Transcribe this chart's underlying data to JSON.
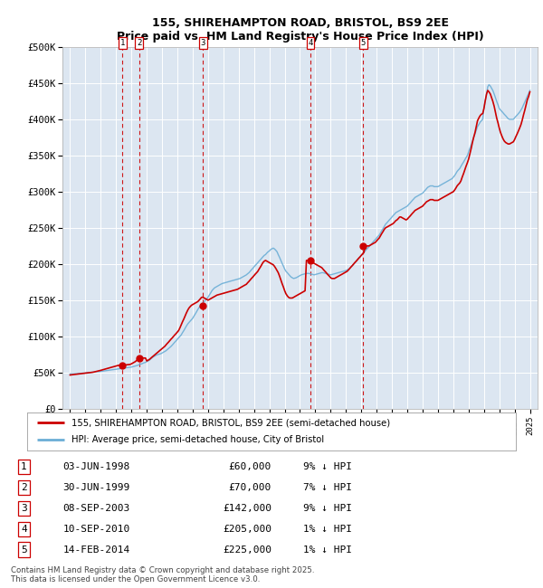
{
  "title": "155, SHIREHAMPTON ROAD, BRISTOL, BS9 2EE",
  "subtitle": "Price paid vs. HM Land Registry's House Price Index (HPI)",
  "legend_line1": "155, SHIREHAMPTON ROAD, BRISTOL, BS9 2EE (semi-detached house)",
  "legend_line2": "HPI: Average price, semi-detached house, City of Bristol",
  "footnote": "Contains HM Land Registry data © Crown copyright and database right 2025.\nThis data is licensed under the Open Government Licence v3.0.",
  "ylim": [
    0,
    500000
  ],
  "yticks": [
    0,
    50000,
    100000,
    150000,
    200000,
    250000,
    300000,
    350000,
    400000,
    450000,
    500000
  ],
  "ytick_labels": [
    "£0",
    "£50K",
    "£100K",
    "£150K",
    "£200K",
    "£250K",
    "£300K",
    "£350K",
    "£400K",
    "£450K",
    "£500K"
  ],
  "xlim_start": 1994.5,
  "xlim_end": 2025.5,
  "plot_bg_color": "#dce6f1",
  "sales": [
    {
      "num": 1,
      "year": 1998.42,
      "price": 60000,
      "date": "03-JUN-1998",
      "pct": "9%",
      "dir": "↓"
    },
    {
      "num": 2,
      "year": 1999.5,
      "price": 70000,
      "date": "30-JUN-1999",
      "pct": "7%",
      "dir": "↓"
    },
    {
      "num": 3,
      "year": 2003.68,
      "price": 142000,
      "date": "08-SEP-2003",
      "pct": "9%",
      "dir": "↓"
    },
    {
      "num": 4,
      "year": 2010.69,
      "price": 205000,
      "date": "10-SEP-2010",
      "pct": "1%",
      "dir": "↓"
    },
    {
      "num": 5,
      "year": 2014.12,
      "price": 225000,
      "date": "14-FEB-2014",
      "pct": "1%",
      "dir": "↓"
    }
  ],
  "hpi_x": [
    1995.0,
    1995.08,
    1995.17,
    1995.25,
    1995.33,
    1995.42,
    1995.5,
    1995.58,
    1995.67,
    1995.75,
    1995.83,
    1995.92,
    1996.0,
    1996.08,
    1996.17,
    1996.25,
    1996.33,
    1996.42,
    1996.5,
    1996.58,
    1996.67,
    1996.75,
    1996.83,
    1996.92,
    1997.0,
    1997.08,
    1997.17,
    1997.25,
    1997.33,
    1997.42,
    1997.5,
    1997.58,
    1997.67,
    1997.75,
    1997.83,
    1997.92,
    1998.0,
    1998.08,
    1998.17,
    1998.25,
    1998.33,
    1998.42,
    1998.5,
    1998.58,
    1998.67,
    1998.75,
    1998.83,
    1998.92,
    1999.0,
    1999.08,
    1999.17,
    1999.25,
    1999.33,
    1999.42,
    1999.5,
    1999.58,
    1999.67,
    1999.75,
    1999.83,
    1999.92,
    2000.0,
    2000.08,
    2000.17,
    2000.25,
    2000.33,
    2000.42,
    2000.5,
    2000.58,
    2000.67,
    2000.75,
    2000.83,
    2000.92,
    2001.0,
    2001.08,
    2001.17,
    2001.25,
    2001.33,
    2001.42,
    2001.5,
    2001.58,
    2001.67,
    2001.75,
    2001.83,
    2001.92,
    2002.0,
    2002.08,
    2002.17,
    2002.25,
    2002.33,
    2002.42,
    2002.5,
    2002.58,
    2002.67,
    2002.75,
    2002.83,
    2002.92,
    2003.0,
    2003.08,
    2003.17,
    2003.25,
    2003.33,
    2003.42,
    2003.5,
    2003.58,
    2003.67,
    2003.75,
    2003.83,
    2003.92,
    2004.0,
    2004.08,
    2004.17,
    2004.25,
    2004.33,
    2004.42,
    2004.5,
    2004.58,
    2004.67,
    2004.75,
    2004.83,
    2004.92,
    2005.0,
    2005.08,
    2005.17,
    2005.25,
    2005.33,
    2005.42,
    2005.5,
    2005.58,
    2005.67,
    2005.75,
    2005.83,
    2005.92,
    2006.0,
    2006.08,
    2006.17,
    2006.25,
    2006.33,
    2006.42,
    2006.5,
    2006.58,
    2006.67,
    2006.75,
    2006.83,
    2006.92,
    2007.0,
    2007.08,
    2007.17,
    2007.25,
    2007.33,
    2007.42,
    2007.5,
    2007.58,
    2007.67,
    2007.75,
    2007.83,
    2007.92,
    2008.0,
    2008.08,
    2008.17,
    2008.25,
    2008.33,
    2008.42,
    2008.5,
    2008.58,
    2008.67,
    2008.75,
    2008.83,
    2008.92,
    2009.0,
    2009.08,
    2009.17,
    2009.25,
    2009.33,
    2009.42,
    2009.5,
    2009.58,
    2009.67,
    2009.75,
    2009.83,
    2009.92,
    2010.0,
    2010.08,
    2010.17,
    2010.25,
    2010.33,
    2010.42,
    2010.5,
    2010.58,
    2010.67,
    2010.75,
    2010.83,
    2010.92,
    2011.0,
    2011.08,
    2011.17,
    2011.25,
    2011.33,
    2011.42,
    2011.5,
    2011.58,
    2011.67,
    2011.75,
    2011.83,
    2011.92,
    2012.0,
    2012.08,
    2012.17,
    2012.25,
    2012.33,
    2012.42,
    2012.5,
    2012.58,
    2012.67,
    2012.75,
    2012.83,
    2012.92,
    2013.0,
    2013.08,
    2013.17,
    2013.25,
    2013.33,
    2013.42,
    2013.5,
    2013.58,
    2013.67,
    2013.75,
    2013.83,
    2013.92,
    2014.0,
    2014.08,
    2014.17,
    2014.25,
    2014.33,
    2014.42,
    2014.5,
    2014.58,
    2014.67,
    2014.75,
    2014.83,
    2014.92,
    2015.0,
    2015.08,
    2015.17,
    2015.25,
    2015.33,
    2015.42,
    2015.5,
    2015.58,
    2015.67,
    2015.75,
    2015.83,
    2015.92,
    2016.0,
    2016.08,
    2016.17,
    2016.25,
    2016.33,
    2016.42,
    2016.5,
    2016.58,
    2016.67,
    2016.75,
    2016.83,
    2016.92,
    2017.0,
    2017.08,
    2017.17,
    2017.25,
    2017.33,
    2017.42,
    2017.5,
    2017.58,
    2017.67,
    2017.75,
    2017.83,
    2017.92,
    2018.0,
    2018.08,
    2018.17,
    2018.25,
    2018.33,
    2018.42,
    2018.5,
    2018.58,
    2018.67,
    2018.75,
    2018.83,
    2018.92,
    2019.0,
    2019.08,
    2019.17,
    2019.25,
    2019.33,
    2019.42,
    2019.5,
    2019.58,
    2019.67,
    2019.75,
    2019.83,
    2019.92,
    2020.0,
    2020.08,
    2020.17,
    2020.25,
    2020.33,
    2020.42,
    2020.5,
    2020.58,
    2020.67,
    2020.75,
    2020.83,
    2020.92,
    2021.0,
    2021.08,
    2021.17,
    2021.25,
    2021.33,
    2021.42,
    2021.5,
    2021.58,
    2021.67,
    2021.75,
    2021.83,
    2021.92,
    2022.0,
    2022.08,
    2022.17,
    2022.25,
    2022.33,
    2022.42,
    2022.5,
    2022.58,
    2022.67,
    2022.75,
    2022.83,
    2022.92,
    2023.0,
    2023.08,
    2023.17,
    2023.25,
    2023.33,
    2023.42,
    2023.5,
    2023.58,
    2023.67,
    2023.75,
    2023.83,
    2023.92,
    2024.0,
    2024.08,
    2024.17,
    2024.25,
    2024.33,
    2024.42,
    2024.5,
    2024.58,
    2024.67,
    2024.75,
    2024.83,
    2024.92,
    2025.0
  ],
  "hpi_y": [
    48000,
    48200,
    48100,
    48300,
    48500,
    48400,
    48600,
    48800,
    48700,
    49000,
    49200,
    49100,
    49500,
    49800,
    50000,
    50200,
    50100,
    50400,
    50600,
    50800,
    51000,
    51200,
    51100,
    51300,
    51500,
    51800,
    52000,
    52300,
    52500,
    52800,
    53000,
    53300,
    53500,
    53800,
    54000,
    54200,
    54500,
    54800,
    55000,
    55300,
    55500,
    55800,
    56000,
    56300,
    56500,
    56800,
    57000,
    57300,
    57500,
    58000,
    58500,
    59000,
    59500,
    60000,
    60800,
    61500,
    62000,
    62800,
    63500,
    64000,
    65000,
    66000,
    67000,
    68500,
    70000,
    71500,
    72500,
    73500,
    74500,
    75000,
    75500,
    76000,
    77000,
    78000,
    79000,
    80000,
    81500,
    83000,
    84500,
    86000,
    88000,
    90000,
    92000,
    94000,
    96000,
    98000,
    100000,
    102000,
    105000,
    108000,
    111000,
    114000,
    117000,
    119000,
    121000,
    123000,
    125000,
    128000,
    131000,
    134000,
    137000,
    140000,
    142000,
    144000,
    146000,
    148000,
    150000,
    152000,
    154000,
    157000,
    160000,
    163000,
    165000,
    167000,
    168000,
    169000,
    170000,
    171000,
    172000,
    173000,
    173500,
    174000,
    174500,
    175000,
    175500,
    176000,
    176500,
    177000,
    177500,
    178000,
    178500,
    179000,
    179500,
    180000,
    181000,
    182000,
    183000,
    184000,
    185000,
    186500,
    188000,
    190000,
    192000,
    194000,
    196000,
    198000,
    200000,
    202000,
    204000,
    206000,
    208000,
    210000,
    212000,
    213000,
    215000,
    217000,
    218000,
    220000,
    221000,
    222000,
    221000,
    219000,
    217000,
    213000,
    209000,
    205000,
    201000,
    197000,
    193000,
    190000,
    188000,
    186000,
    184000,
    182000,
    181000,
    180000,
    180500,
    181000,
    182000,
    183000,
    184000,
    185000,
    185500,
    186000,
    186500,
    187000,
    187000,
    187000,
    186500,
    186000,
    185500,
    185000,
    185500,
    186000,
    186500,
    187000,
    187500,
    188000,
    188000,
    187500,
    187000,
    186500,
    186000,
    185500,
    185000,
    185500,
    186000,
    186500,
    187000,
    187500,
    188000,
    188500,
    189000,
    189500,
    190000,
    190500,
    191000,
    192000,
    193000,
    194000,
    196000,
    198000,
    200000,
    202000,
    204000,
    206000,
    208000,
    210000,
    212000,
    214000,
    216000,
    218000,
    220000,
    222000,
    224000,
    226000,
    228000,
    230000,
    232000,
    234000,
    236000,
    238000,
    240000,
    243000,
    246000,
    249000,
    252000,
    255000,
    257000,
    259000,
    261000,
    263000,
    265000,
    267000,
    269000,
    271000,
    272000,
    273000,
    274000,
    275000,
    276000,
    277000,
    278000,
    279000,
    280000,
    282000,
    284000,
    286000,
    288000,
    290000,
    292000,
    293000,
    294000,
    295000,
    296000,
    297000,
    298000,
    300000,
    302000,
    304000,
    306000,
    307000,
    308000,
    308000,
    308000,
    307000,
    307000,
    307000,
    307000,
    308000,
    309000,
    310000,
    311000,
    312000,
    313000,
    314000,
    315000,
    316000,
    317000,
    318000,
    320000,
    322000,
    325000,
    328000,
    330000,
    332000,
    335000,
    338000,
    341000,
    344000,
    347000,
    350000,
    355000,
    360000,
    365000,
    370000,
    375000,
    380000,
    385000,
    390000,
    393000,
    396000,
    398000,
    400000,
    415000,
    425000,
    435000,
    445000,
    448000,
    446000,
    443000,
    440000,
    435000,
    430000,
    425000,
    420000,
    415000,
    413000,
    411000,
    409000,
    407000,
    405000,
    403000,
    401000,
    400000,
    400000,
    400000,
    400000,
    402000,
    404000,
    406000,
    408000,
    410000,
    413000,
    416000,
    420000,
    424000,
    428000,
    432000,
    436000,
    440000
  ],
  "price_x": [
    1995.0,
    1995.08,
    1995.17,
    1995.25,
    1995.33,
    1995.42,
    1995.5,
    1995.58,
    1995.67,
    1995.75,
    1995.83,
    1995.92,
    1996.0,
    1996.08,
    1996.17,
    1996.25,
    1996.33,
    1996.42,
    1996.5,
    1996.58,
    1996.67,
    1996.75,
    1996.83,
    1996.92,
    1997.0,
    1997.08,
    1997.17,
    1997.25,
    1997.33,
    1997.42,
    1997.5,
    1997.58,
    1997.67,
    1997.75,
    1997.83,
    1997.92,
    1998.0,
    1998.08,
    1998.17,
    1998.25,
    1998.33,
    1998.42,
    1998.5,
    1998.58,
    1998.67,
    1998.75,
    1998.83,
    1998.92,
    1999.0,
    1999.08,
    1999.17,
    1999.25,
    1999.33,
    1999.42,
    1999.5,
    1999.58,
    1999.67,
    1999.75,
    1999.83,
    1999.92,
    2000.0,
    2000.08,
    2000.17,
    2000.25,
    2000.33,
    2000.42,
    2000.5,
    2000.58,
    2000.67,
    2000.75,
    2000.83,
    2000.92,
    2001.0,
    2001.08,
    2001.17,
    2001.25,
    2001.33,
    2001.42,
    2001.5,
    2001.58,
    2001.67,
    2001.75,
    2001.83,
    2001.92,
    2002.0,
    2002.08,
    2002.17,
    2002.25,
    2002.33,
    2002.42,
    2002.5,
    2002.58,
    2002.67,
    2002.75,
    2002.83,
    2002.92,
    2003.0,
    2003.08,
    2003.17,
    2003.25,
    2003.33,
    2003.42,
    2003.5,
    2003.58,
    2003.67,
    2003.75,
    2003.83,
    2003.92,
    2004.0,
    2004.08,
    2004.17,
    2004.25,
    2004.33,
    2004.42,
    2004.5,
    2004.58,
    2004.67,
    2004.75,
    2004.83,
    2004.92,
    2005.0,
    2005.08,
    2005.17,
    2005.25,
    2005.33,
    2005.42,
    2005.5,
    2005.58,
    2005.67,
    2005.75,
    2005.83,
    2005.92,
    2006.0,
    2006.08,
    2006.17,
    2006.25,
    2006.33,
    2006.42,
    2006.5,
    2006.58,
    2006.67,
    2006.75,
    2006.83,
    2006.92,
    2007.0,
    2007.08,
    2007.17,
    2007.25,
    2007.33,
    2007.42,
    2007.5,
    2007.58,
    2007.67,
    2007.75,
    2007.83,
    2007.92,
    2008.0,
    2008.08,
    2008.17,
    2008.25,
    2008.33,
    2008.42,
    2008.5,
    2008.58,
    2008.67,
    2008.75,
    2008.83,
    2008.92,
    2009.0,
    2009.08,
    2009.17,
    2009.25,
    2009.33,
    2009.42,
    2009.5,
    2009.58,
    2009.67,
    2009.75,
    2009.83,
    2009.92,
    2010.0,
    2010.08,
    2010.17,
    2010.25,
    2010.33,
    2010.42,
    2010.5,
    2010.58,
    2010.67,
    2010.75,
    2010.83,
    2010.92,
    2011.0,
    2011.08,
    2011.17,
    2011.25,
    2011.33,
    2011.42,
    2011.5,
    2011.58,
    2011.67,
    2011.75,
    2011.83,
    2011.92,
    2012.0,
    2012.08,
    2012.17,
    2012.25,
    2012.33,
    2012.42,
    2012.5,
    2012.58,
    2012.67,
    2012.75,
    2012.83,
    2012.92,
    2013.0,
    2013.08,
    2013.17,
    2013.25,
    2013.33,
    2013.42,
    2013.5,
    2013.58,
    2013.67,
    2013.75,
    2013.83,
    2013.92,
    2014.0,
    2014.08,
    2014.17,
    2014.25,
    2014.33,
    2014.42,
    2014.5,
    2014.58,
    2014.67,
    2014.75,
    2014.83,
    2014.92,
    2015.0,
    2015.08,
    2015.17,
    2015.25,
    2015.33,
    2015.42,
    2015.5,
    2015.58,
    2015.67,
    2015.75,
    2015.83,
    2015.92,
    2016.0,
    2016.08,
    2016.17,
    2016.25,
    2016.33,
    2016.42,
    2016.5,
    2016.58,
    2016.67,
    2016.75,
    2016.83,
    2016.92,
    2017.0,
    2017.08,
    2017.17,
    2017.25,
    2017.33,
    2017.42,
    2017.5,
    2017.58,
    2017.67,
    2017.75,
    2017.83,
    2017.92,
    2018.0,
    2018.08,
    2018.17,
    2018.25,
    2018.33,
    2018.42,
    2018.5,
    2018.58,
    2018.67,
    2018.75,
    2018.83,
    2018.92,
    2019.0,
    2019.08,
    2019.17,
    2019.25,
    2019.33,
    2019.42,
    2019.5,
    2019.58,
    2019.67,
    2019.75,
    2019.83,
    2019.92,
    2020.0,
    2020.08,
    2020.17,
    2020.25,
    2020.33,
    2020.42,
    2020.5,
    2020.58,
    2020.67,
    2020.75,
    2020.83,
    2020.92,
    2021.0,
    2021.08,
    2021.17,
    2021.25,
    2021.33,
    2021.42,
    2021.5,
    2021.58,
    2021.67,
    2021.75,
    2021.83,
    2021.92,
    2022.0,
    2022.08,
    2022.17,
    2022.25,
    2022.33,
    2022.42,
    2022.5,
    2022.58,
    2022.67,
    2022.75,
    2022.83,
    2022.92,
    2023.0,
    2023.08,
    2023.17,
    2023.25,
    2023.33,
    2023.42,
    2023.5,
    2023.58,
    2023.67,
    2023.75,
    2023.83,
    2023.92,
    2024.0,
    2024.08,
    2024.17,
    2024.25,
    2024.33,
    2024.42,
    2024.5,
    2024.58,
    2024.67,
    2024.75,
    2024.83,
    2024.92,
    2025.0
  ],
  "price_y": [
    46500,
    46800,
    47000,
    47200,
    47400,
    47600,
    47800,
    48000,
    48200,
    48400,
    48600,
    48800,
    49000,
    49200,
    49400,
    49600,
    49800,
    50000,
    50400,
    50800,
    51200,
    51600,
    52000,
    52500,
    53000,
    53500,
    54000,
    54500,
    55000,
    55500,
    56000,
    56500,
    57000,
    57500,
    58000,
    58500,
    59000,
    59500,
    60000,
    60000,
    60000,
    60000,
    60200,
    60400,
    60600,
    60800,
    61000,
    61200,
    62000,
    63000,
    64000,
    65000,
    66500,
    68000,
    70000,
    70000,
    70000,
    70000,
    70000,
    70000,
    66000,
    67000,
    68000,
    69500,
    71000,
    72500,
    74000,
    75500,
    77000,
    78500,
    80000,
    81500,
    83000,
    84500,
    86000,
    88000,
    90000,
    92000,
    94000,
    96000,
    98000,
    100000,
    102000,
    104000,
    106000,
    108000,
    112000,
    116000,
    120000,
    124000,
    128000,
    132000,
    136000,
    139000,
    141000,
    143000,
    144000,
    145000,
    146000,
    147000,
    148000,
    150000,
    152000,
    154000,
    154000,
    153000,
    152000,
    151000,
    150000,
    151000,
    152000,
    153000,
    154000,
    155000,
    156000,
    157000,
    157500,
    158000,
    158500,
    159000,
    159500,
    160000,
    160500,
    161000,
    161500,
    162000,
    162500,
    163000,
    163500,
    164000,
    164500,
    165000,
    166000,
    167000,
    168000,
    169000,
    170000,
    171000,
    172000,
    174000,
    176000,
    178000,
    180000,
    182000,
    184000,
    186000,
    188000,
    190000,
    193000,
    196000,
    199000,
    202000,
    204000,
    205000,
    204000,
    203000,
    202000,
    201000,
    200000,
    199000,
    197000,
    194000,
    191000,
    188000,
    183000,
    178000,
    173000,
    168000,
    163000,
    159000,
    156000,
    154000,
    153000,
    153000,
    153000,
    154000,
    155000,
    156000,
    157000,
    158000,
    159000,
    160000,
    161000,
    162000,
    163000,
    205000,
    205000,
    205000,
    204000,
    203000,
    202000,
    201000,
    200000,
    199000,
    198000,
    197000,
    196000,
    195000,
    193000,
    191000,
    189000,
    187000,
    185000,
    183000,
    181000,
    180000,
    180000,
    180000,
    181000,
    182000,
    183000,
    184000,
    185000,
    186000,
    187000,
    188000,
    189000,
    190000,
    192000,
    194000,
    196000,
    198000,
    200000,
    202000,
    204000,
    206000,
    208000,
    210000,
    212000,
    214000,
    216000,
    225000,
    225000,
    225000,
    225000,
    226000,
    227000,
    228000,
    229000,
    230000,
    232000,
    234000,
    236000,
    239000,
    242000,
    245000,
    248000,
    250000,
    251000,
    252000,
    253000,
    254000,
    255000,
    256000,
    258000,
    260000,
    261000,
    263000,
    265000,
    265000,
    264000,
    263000,
    262000,
    261000,
    262000,
    264000,
    266000,
    268000,
    270000,
    272000,
    274000,
    275000,
    276000,
    277000,
    278000,
    279000,
    280000,
    282000,
    284000,
    286000,
    287000,
    288000,
    289000,
    289000,
    289000,
    288000,
    288000,
    288000,
    288000,
    289000,
    290000,
    291000,
    292000,
    293000,
    294000,
    295000,
    296000,
    297000,
    298000,
    299000,
    300000,
    302000,
    305000,
    308000,
    310000,
    312000,
    315000,
    320000,
    325000,
    330000,
    335000,
    340000,
    345000,
    352000,
    360000,
    368000,
    375000,
    382000,
    390000,
    398000,
    402000,
    405000,
    407000,
    408000,
    415000,
    425000,
    435000,
    440000,
    438000,
    435000,
    430000,
    425000,
    418000,
    410000,
    402000,
    395000,
    388000,
    382000,
    377000,
    373000,
    370000,
    368000,
    367000,
    366000,
    366000,
    367000,
    368000,
    369000,
    372000,
    376000,
    380000,
    384000,
    388000,
    393000,
    399000,
    406000,
    413000,
    420000,
    427000,
    432000,
    438000
  ],
  "hpi_color": "#6baed6",
  "price_color": "#cc0000",
  "marker_color": "#cc0000",
  "vline_color": "#cc0000"
}
